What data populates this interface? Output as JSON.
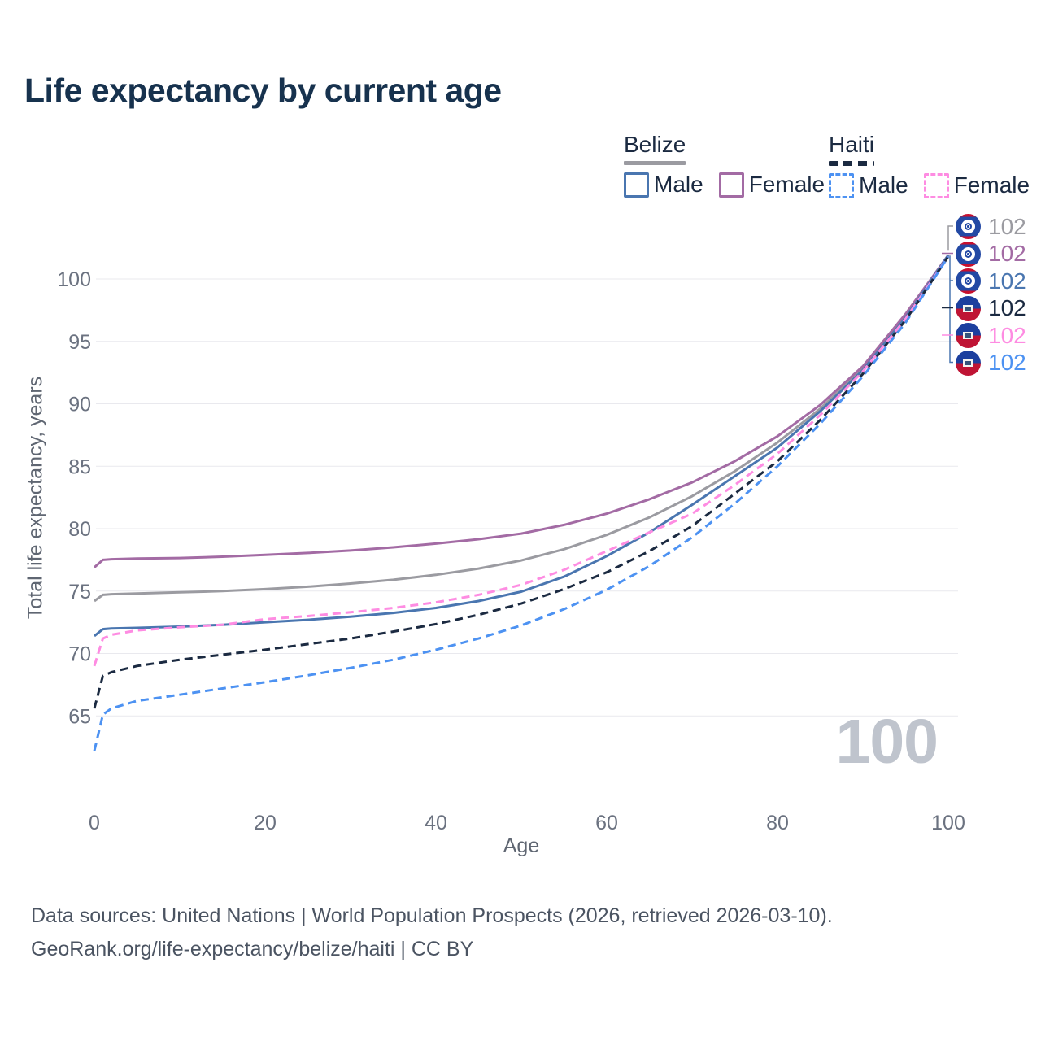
{
  "title": "Life expectancy by current age",
  "watermark": "100",
  "legend": {
    "position": "top-right",
    "groups": [
      {
        "name": "Belize",
        "line_style": "solid",
        "underline_color": "#9b9ba1",
        "items": [
          {
            "label": "Male",
            "color": "#4a76b0"
          },
          {
            "label": "Female",
            "color": "#a36ba4"
          }
        ]
      },
      {
        "name": "Haiti",
        "line_style": "dashed",
        "underline_color": "#1b2a41",
        "items": [
          {
            "label": "Male",
            "color": "#4d92f2"
          },
          {
            "label": "Female",
            "color": "#fe8ce2"
          }
        ]
      }
    ]
  },
  "chart_data": {
    "type": "line",
    "title": "Life expectancy by current age",
    "xlabel": "Age",
    "ylabel": "Total life expectancy, years",
    "xlim": [
      0,
      100
    ],
    "ylim": [
      61,
      103
    ],
    "x_ticks": [
      0,
      20,
      40,
      60,
      80,
      100
    ],
    "y_ticks": [
      65,
      70,
      75,
      80,
      85,
      90,
      95,
      100
    ],
    "grid": "horizontal",
    "grid_color": "#e9e9ee",
    "tick_label_color": "#6b7280",
    "x": [
      0,
      1,
      2,
      5,
      10,
      15,
      20,
      25,
      30,
      35,
      40,
      45,
      50,
      55,
      60,
      65,
      70,
      75,
      80,
      85,
      90,
      95,
      100
    ],
    "series": [
      {
        "name": "Belize (both sexes)",
        "country": "Belize",
        "sex": "both",
        "style": "solid",
        "color": "#9b9ba1",
        "flag": "belize",
        "end_label": "102",
        "end_value": 102,
        "values": [
          74.2,
          74.7,
          74.75,
          74.8,
          74.9,
          75.0,
          75.15,
          75.35,
          75.6,
          75.9,
          76.3,
          76.8,
          77.45,
          78.35,
          79.5,
          80.9,
          82.6,
          84.6,
          86.9,
          89.6,
          92.8,
          97.0,
          101.9
        ]
      },
      {
        "name": "Belize Female",
        "country": "Belize",
        "sex": "female",
        "style": "solid",
        "color": "#a36ba4",
        "flag": "belize",
        "end_label": "102",
        "end_value": 102,
        "values": [
          76.9,
          77.5,
          77.55,
          77.6,
          77.65,
          77.75,
          77.9,
          78.05,
          78.25,
          78.5,
          78.8,
          79.15,
          79.6,
          80.3,
          81.2,
          82.35,
          83.7,
          85.4,
          87.4,
          89.9,
          93.0,
          97.2,
          101.9
        ]
      },
      {
        "name": "Belize Male",
        "country": "Belize",
        "sex": "male",
        "style": "solid",
        "color": "#4a76b0",
        "flag": "belize",
        "end_label": "102",
        "end_value": 102,
        "values": [
          71.4,
          71.95,
          72.0,
          72.05,
          72.15,
          72.3,
          72.5,
          72.7,
          72.95,
          73.25,
          73.65,
          74.2,
          74.95,
          76.15,
          77.8,
          79.7,
          81.9,
          84.2,
          86.5,
          89.4,
          92.7,
          96.9,
          101.9
        ]
      },
      {
        "name": "Haiti (both sexes)",
        "country": "Haiti",
        "sex": "both",
        "style": "dashed",
        "color": "#1b2a41",
        "flag": "haiti",
        "end_label": "102",
        "end_value": 102,
        "values": [
          65.6,
          68.2,
          68.5,
          69.0,
          69.5,
          69.9,
          70.3,
          70.75,
          71.2,
          71.75,
          72.35,
          73.1,
          74.0,
          75.15,
          76.5,
          78.2,
          80.2,
          82.8,
          85.4,
          88.7,
          92.4,
          96.7,
          101.8
        ]
      },
      {
        "name": "Haiti Female",
        "country": "Haiti",
        "sex": "female",
        "style": "dashed",
        "color": "#fe8ce2",
        "flag": "haiti",
        "end_label": "102",
        "end_value": 102,
        "values": [
          69.0,
          71.2,
          71.5,
          71.85,
          72.1,
          72.3,
          72.75,
          73.0,
          73.3,
          73.65,
          74.1,
          74.7,
          75.5,
          76.7,
          78.2,
          79.7,
          81.2,
          83.5,
          86.0,
          89.1,
          92.6,
          96.8,
          101.8
        ]
      },
      {
        "name": "Haiti Male",
        "country": "Haiti",
        "sex": "male",
        "style": "dashed",
        "color": "#4d92f2",
        "flag": "haiti",
        "end_label": "102",
        "end_value": 102,
        "values": [
          62.2,
          65.1,
          65.6,
          66.2,
          66.7,
          67.2,
          67.7,
          68.25,
          68.85,
          69.5,
          70.3,
          71.2,
          72.25,
          73.55,
          75.1,
          77.0,
          79.3,
          82.0,
          85.0,
          88.4,
          92.2,
          96.5,
          101.8
        ]
      }
    ]
  },
  "footer": {
    "line1": "Data sources: United Nations | World Population Prospects (2026, retrieved 2026-03-10).",
    "line2": "GeoRank.org/life-expectancy/belize/haiti | CC BY"
  }
}
